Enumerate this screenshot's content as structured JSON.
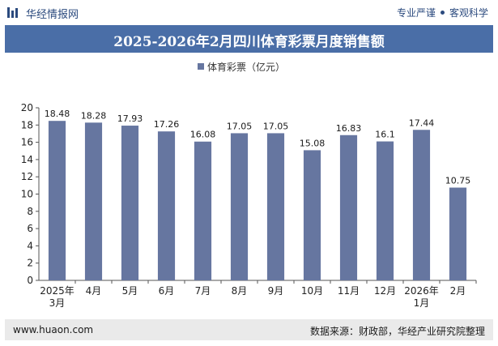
{
  "header": {
    "brand": "华经情报网",
    "slogan_left": "专业严谨",
    "slogan_right": "客观科学"
  },
  "footer": {
    "url": "www.huaon.com",
    "source": "数据来源：财政部，华经产业研究院整理"
  },
  "colors": {
    "bar": "#6676a0",
    "title_bar": "#4a6ea7",
    "brand": "#2b4a7e",
    "footer_bg": "#eaeaea"
  },
  "chart_data": {
    "type": "bar",
    "title": "2025-2026年2月四川体育彩票月度销售额",
    "legend": "体育彩票（亿元）",
    "legend_position": "top",
    "categories": [
      [
        "2025年",
        "3月"
      ],
      [
        "4月"
      ],
      [
        "5月"
      ],
      [
        "6月"
      ],
      [
        "7月"
      ],
      [
        "8月"
      ],
      [
        "9月"
      ],
      [
        "10月"
      ],
      [
        "11月"
      ],
      [
        "12月"
      ],
      [
        "2026年",
        "1月"
      ],
      [
        "2月"
      ]
    ],
    "series": [
      {
        "name": "体育彩票（亿元）",
        "values": [
          18.48,
          18.28,
          17.93,
          17.26,
          16.08,
          17.05,
          17.05,
          15.08,
          16.83,
          16.1,
          17.44,
          10.75
        ],
        "labels": [
          "18.48",
          "18.28",
          "17.93",
          "17.26",
          "16.08",
          "17.05",
          "17.05",
          "15.08",
          "16.83",
          "16.1",
          "17.44",
          "10.75"
        ]
      }
    ],
    "yticks": [
      0,
      2,
      4,
      6,
      8,
      10,
      12,
      14,
      16,
      18,
      20
    ],
    "ylim": [
      0,
      20
    ],
    "grid": false
  }
}
